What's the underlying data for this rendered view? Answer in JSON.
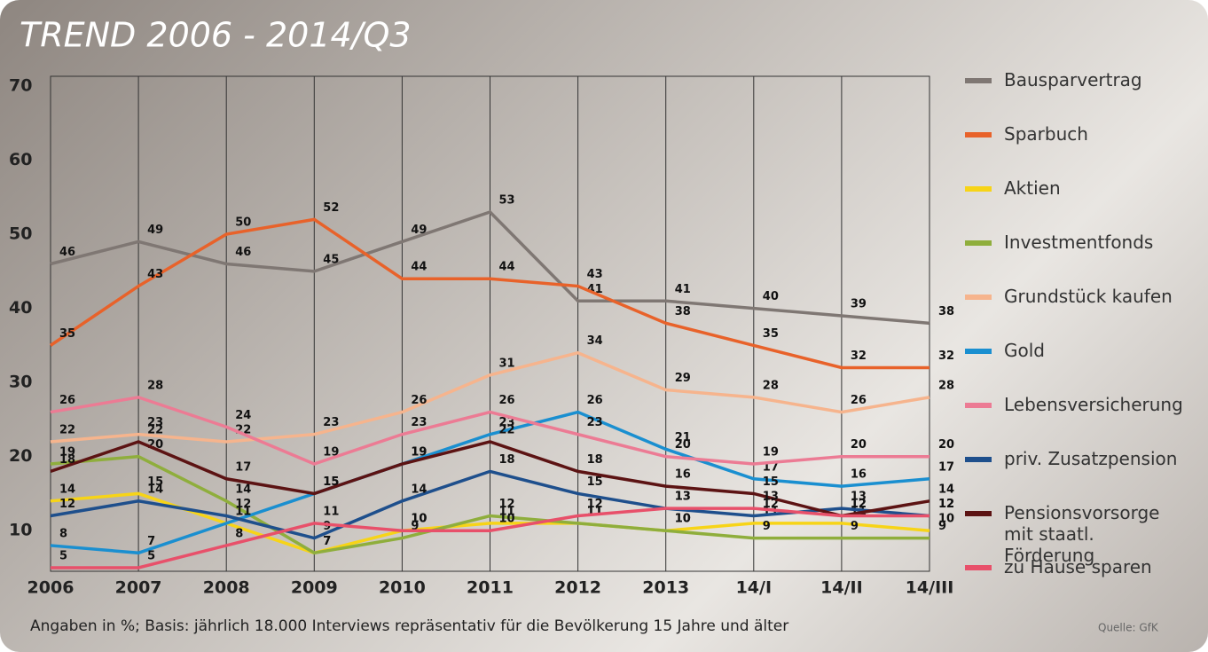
{
  "chart_data": {
    "type": "line",
    "title": "TREND 2006 - 2014/Q3",
    "categories": [
      "2006",
      "2007",
      "2008",
      "2009",
      "2010",
      "2011",
      "2012",
      "2013",
      "14/I",
      "14/II",
      "14/III"
    ],
    "ylim": [
      5,
      70
    ],
    "yticks": [
      10,
      20,
      30,
      40,
      50,
      60,
      70
    ],
    "grid": "x",
    "series": [
      {
        "name": "Bausparvertrag",
        "color": "#7f7773",
        "values": [
          46,
          49,
          46,
          45,
          49,
          53,
          41,
          41,
          40,
          39,
          38
        ]
      },
      {
        "name": "Sparbuch",
        "color": "#e8622a",
        "values": [
          35,
          43,
          50,
          52,
          44,
          44,
          43,
          38,
          35,
          32,
          32
        ]
      },
      {
        "name": "Aktien",
        "color": "#f7d417",
        "values": [
          14,
          15,
          11,
          7,
          10,
          11,
          11,
          10,
          11,
          11,
          10
        ]
      },
      {
        "name": "Investmentfonds",
        "color": "#8fae3c",
        "values": [
          19,
          20,
          14,
          7,
          9,
          12,
          11,
          10,
          9,
          9,
          9
        ]
      },
      {
        "name": "Grundstück kaufen",
        "color": "#f6b48d",
        "values": [
          22,
          23,
          22,
          23,
          26,
          31,
          34,
          29,
          28,
          26,
          28
        ]
      },
      {
        "name": "Gold",
        "color": "#1a8fd0",
        "values": [
          8,
          7,
          11,
          15,
          19,
          23,
          26,
          21,
          17,
          16,
          17
        ]
      },
      {
        "name": "Lebensversicherung",
        "color": "#ec7b94",
        "values": [
          26,
          28,
          24,
          19,
          23,
          26,
          23,
          20,
          19,
          20,
          20
        ]
      },
      {
        "name": "priv. Zusatzpension",
        "color": "#1e4f8c",
        "values": [
          12,
          14,
          12,
          9,
          14,
          18,
          15,
          13,
          12,
          13,
          12
        ]
      },
      {
        "name": "Pensionsvorsorge\nmit staatl. Förderung",
        "color": "#5c1313",
        "values": [
          18,
          22,
          17,
          15,
          19,
          22,
          18,
          16,
          15,
          12,
          14
        ]
      },
      {
        "name": "zu Hause sparen",
        "color": "#e8506a",
        "values": [
          5,
          5,
          8,
          11,
          10,
          10,
          12,
          13,
          13,
          12,
          12
        ]
      }
    ],
    "note": "Angaben in %; Basis: jährlich 18.000 Interviews repräsentativ für die Bevölkerung 15 Jahre und älter",
    "source": "Quelle: GfK"
  }
}
